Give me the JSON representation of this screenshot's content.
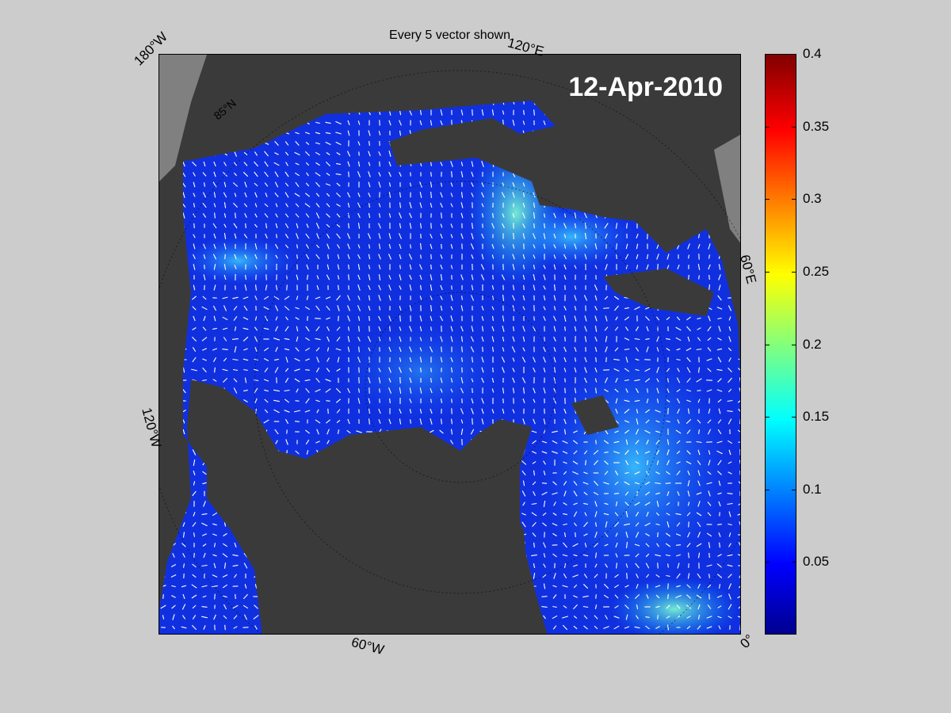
{
  "title": "Every 5 vector shown",
  "date": "12-Apr-2010",
  "lon_labels": {
    "w180": "180°W",
    "e120": "120°E",
    "e60": "60°E",
    "w120": "120°W",
    "w60": "60°W",
    "zero": "0°"
  },
  "lat_label": "85°N",
  "colorbar": {
    "min": 0,
    "max": 0.4,
    "ticks": [
      "0.05",
      "0.1",
      "0.15",
      "0.2",
      "0.25",
      "0.3",
      "0.35",
      "0.4"
    ],
    "tick_values": [
      0.05,
      0.1,
      0.15,
      0.2,
      0.25,
      0.3,
      0.35,
      0.4
    ],
    "colormap": "jet"
  },
  "colors": {
    "land": "#3a3a3a",
    "ocean_low": "#1030e0",
    "vector": "#ffffff",
    "background": "#cccccc"
  }
}
